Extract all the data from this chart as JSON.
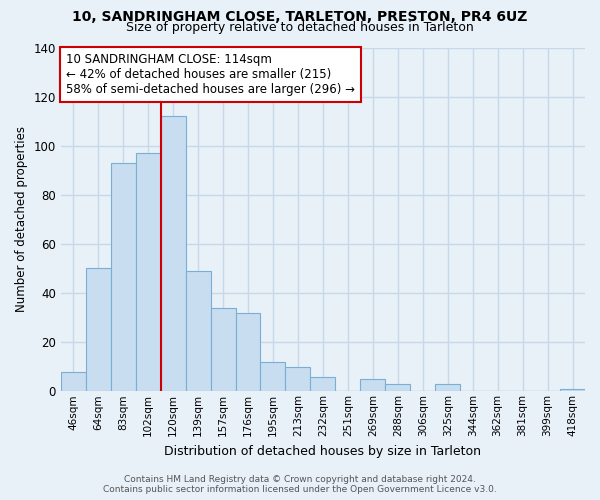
{
  "title": "10, SANDRINGHAM CLOSE, TARLETON, PRESTON, PR4 6UZ",
  "subtitle": "Size of property relative to detached houses in Tarleton",
  "xlabel": "Distribution of detached houses by size in Tarleton",
  "ylabel": "Number of detached properties",
  "bar_labels": [
    "46sqm",
    "64sqm",
    "83sqm",
    "102sqm",
    "120sqm",
    "139sqm",
    "157sqm",
    "176sqm",
    "195sqm",
    "213sqm",
    "232sqm",
    "251sqm",
    "269sqm",
    "288sqm",
    "306sqm",
    "325sqm",
    "344sqm",
    "362sqm",
    "381sqm",
    "399sqm",
    "418sqm"
  ],
  "bar_values": [
    8,
    50,
    93,
    97,
    112,
    49,
    34,
    32,
    12,
    10,
    6,
    0,
    5,
    3,
    0,
    3,
    0,
    0,
    0,
    0,
    1
  ],
  "bar_color": "#c8ddf0",
  "bar_edge_color": "#7aafd4",
  "highlight_line_index": 4,
  "highlight_line_color": "#cc0000",
  "annotation_line1": "10 SANDRINGHAM CLOSE: 114sqm",
  "annotation_line2": "← 42% of detached houses are smaller (215)",
  "annotation_line3": "58% of semi-detached houses are larger (296) →",
  "annotation_box_color": "#ffffff",
  "annotation_box_edge": "#cc0000",
  "ylim": [
    0,
    140
  ],
  "yticks": [
    0,
    20,
    40,
    60,
    80,
    100,
    120,
    140
  ],
  "footer1": "Contains HM Land Registry data © Crown copyright and database right 2024.",
  "footer2": "Contains public sector information licensed under the Open Government Licence v3.0.",
  "bg_color": "#e8f0f8",
  "grid_color": "#c8d8e8",
  "title_fontsize": 10,
  "subtitle_fontsize": 9
}
